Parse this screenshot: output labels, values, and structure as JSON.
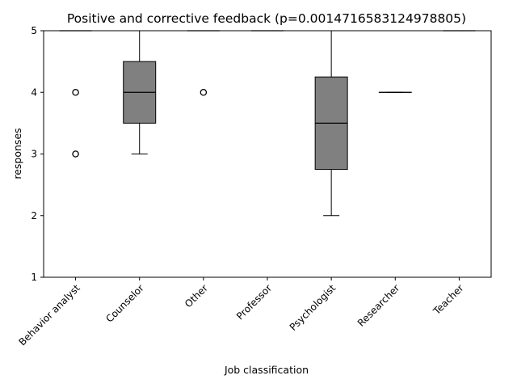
{
  "chart_data": {
    "type": "box",
    "title": "Positive and corrective feedback (p=0.0014716583124978805)",
    "xlabel": "Job classification",
    "ylabel": "responses",
    "ylim": [
      1,
      5
    ],
    "yticks": [
      1,
      2,
      3,
      4,
      5
    ],
    "categories": [
      "Behavior analyst",
      "Counselor",
      "Other",
      "Professor",
      "Psychologist",
      "Researcher",
      "Teacher"
    ],
    "box_color": "#808080",
    "grid": false,
    "boxes": [
      {
        "category": "Behavior analyst",
        "q1": 5,
        "median": 5,
        "q3": 5,
        "whisker_low": 5,
        "whisker_high": 5,
        "outliers": [
          4,
          3
        ]
      },
      {
        "category": "Counselor",
        "q1": 3.5,
        "median": 4,
        "q3": 4.5,
        "whisker_low": 3,
        "whisker_high": 5,
        "outliers": []
      },
      {
        "category": "Other",
        "q1": 5,
        "median": 5,
        "q3": 5,
        "whisker_low": 5,
        "whisker_high": 5,
        "outliers": [
          4
        ]
      },
      {
        "category": "Professor",
        "q1": 5,
        "median": 5,
        "q3": 5,
        "whisker_low": 5,
        "whisker_high": 5,
        "outliers": []
      },
      {
        "category": "Psychologist",
        "q1": 2.75,
        "median": 3.5,
        "q3": 4.25,
        "whisker_low": 2,
        "whisker_high": 5,
        "outliers": []
      },
      {
        "category": "Researcher",
        "q1": 4,
        "median": 4,
        "q3": 4,
        "whisker_low": 4,
        "whisker_high": 4,
        "outliers": []
      },
      {
        "category": "Teacher",
        "q1": 5,
        "median": 5,
        "q3": 5,
        "whisker_low": 5,
        "whisker_high": 5,
        "outliers": []
      }
    ]
  }
}
